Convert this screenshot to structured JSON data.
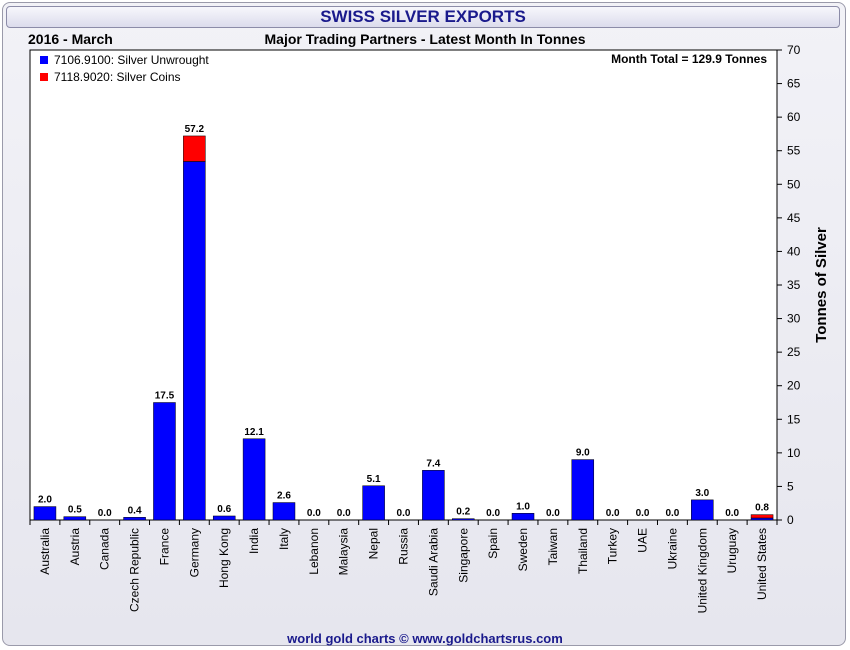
{
  "title": "SWISS SILVER EXPORTS",
  "subtitle_left": "2016 - March",
  "subtitle_center": "Major Trading Partners - Latest Month In Tonnes",
  "footer": "world gold charts © www.goldchartsrus.com",
  "colors": {
    "unwrought": "#0000ff",
    "coins": "#ff0000",
    "title_text": "#1a1a8c"
  },
  "chart_data": {
    "type": "bar",
    "stacked": true,
    "annotation": "Month Total = 129.9 Tonnes",
    "ylabel": "Tonnes of Silver",
    "ylim": [
      0,
      70
    ],
    "yticks": [
      0,
      5,
      10,
      15,
      20,
      25,
      30,
      35,
      40,
      45,
      50,
      55,
      60,
      65,
      70
    ],
    "legend_position": "top-left",
    "categories": [
      "Australia",
      "Austria",
      "Canada",
      "Czech Republic",
      "France",
      "Germany",
      "Hong Kong",
      "India",
      "Italy",
      "Lebanon",
      "Malaysia",
      "Nepal",
      "Russia",
      "Saudi Arabia",
      "Singapore",
      "Spain",
      "Sweden",
      "Taiwan",
      "Thailand",
      "Turkey",
      "UAE",
      "Ukraine",
      "United Kingdom",
      "Uruguay",
      "United States"
    ],
    "series": [
      {
        "name": "7106.9100: Silver Unwrought",
        "color": "#0000ff",
        "values": [
          2.0,
          0.5,
          0.0,
          0.4,
          17.5,
          53.4,
          0.6,
          12.1,
          2.6,
          0.0,
          0.0,
          5.1,
          0.0,
          7.4,
          0.2,
          0.0,
          1.0,
          0.0,
          9.0,
          0.0,
          0.0,
          0.0,
          3.0,
          0.0,
          0.3
        ]
      },
      {
        "name": "7118.9020: Silver Coins",
        "color": "#ff0000",
        "values": [
          0.0,
          0.0,
          0.0,
          0.0,
          0.0,
          3.8,
          0.0,
          0.0,
          0.0,
          0.0,
          0.0,
          0.0,
          0.0,
          0.0,
          0.0,
          0.0,
          0.0,
          0.0,
          0.0,
          0.0,
          0.0,
          0.0,
          0.0,
          0.0,
          0.5
        ]
      }
    ],
    "totals": [
      "2.0",
      "0.5",
      "0.0",
      "0.4",
      "17.5",
      "57.2",
      "0.6",
      "12.1",
      "2.6",
      "0.0",
      "0.0",
      "5.1",
      "0.0",
      "7.4",
      "0.2",
      "0.0",
      "1.0",
      "0.0",
      "9.0",
      "0.0",
      "0.0",
      "0.0",
      "3.0",
      "0.0",
      "0.8"
    ]
  }
}
